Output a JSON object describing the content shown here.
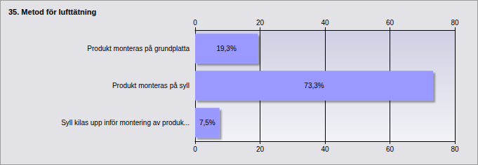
{
  "chart_data": {
    "type": "bar",
    "orientation": "horizontal",
    "title": "35. Metod för lufttätning",
    "categories": [
      "Produkt monteras på grundplatta",
      "Produkt monteras på syll",
      "Syll kilas upp inför montering av produk..."
    ],
    "values": [
      19.3,
      73.3,
      7.5
    ],
    "value_labels": [
      "19,3%",
      "73,3%",
      "7,5%"
    ],
    "data_labels": true,
    "color": "#9999ff",
    "xlim": [
      0,
      80
    ],
    "xticks": [
      0,
      20,
      40,
      60,
      80
    ],
    "grid": true
  }
}
